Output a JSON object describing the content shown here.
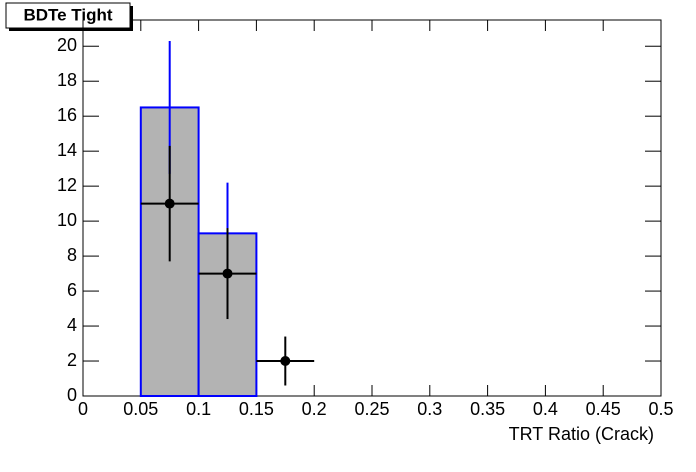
{
  "chart_data": {
    "type": "histogram",
    "title": "BDTe Tight",
    "x_label": "TRT Ratio (Crack)",
    "bins": [
      0,
      0.05,
      0.1,
      0.15,
      0.2,
      0.25,
      0.3,
      0.35,
      0.4,
      0.45,
      0.5
    ],
    "values": [
      0,
      16.5,
      9.3,
      0,
      0,
      0,
      0,
      0,
      0,
      0
    ],
    "errors": [
      0,
      3.8,
      2.9,
      0,
      0,
      0,
      0,
      0,
      0,
      0
    ],
    "color": "#0000ff",
    "fill": "#b3b3b3",
    "points": {
      "x": [
        0.075,
        0.125,
        0.175
      ],
      "x_errors": [
        0.025,
        0.025,
        0.025
      ],
      "values": [
        11,
        7,
        2
      ],
      "errors": [
        3.3,
        2.6,
        1.4
      ],
      "color": "#000000"
    },
    "xlim": [
      0,
      0.5
    ],
    "ylim": [
      0,
      21.5
    ],
    "xticks": [
      0,
      0.05,
      0.1,
      0.15,
      0.2,
      0.25,
      0.3,
      0.35,
      0.4,
      0.45,
      0.5
    ],
    "yticks": [
      0,
      2,
      4,
      6,
      8,
      10,
      12,
      14,
      16,
      18,
      20
    ]
  }
}
